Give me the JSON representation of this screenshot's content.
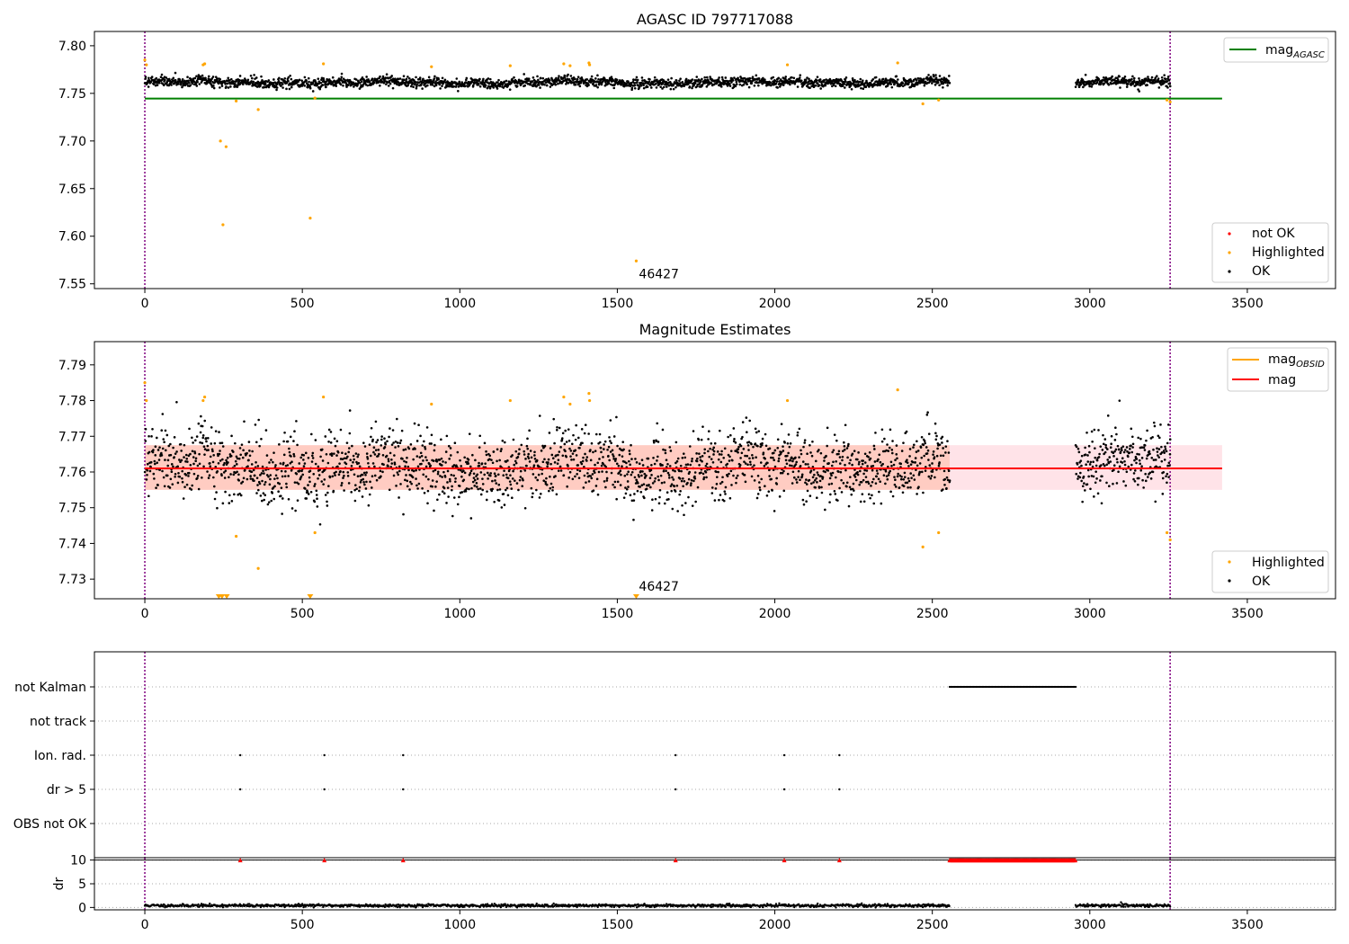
{
  "chart_data": [
    {
      "type": "scatter",
      "title": "AGASC ID 797717088",
      "xlim": [
        -160,
        3780
      ],
      "ylim": [
        7.545,
        7.815
      ],
      "xticks": [
        0,
        500,
        1000,
        1500,
        2000,
        2500,
        3000,
        3500
      ],
      "yticks": [
        7.55,
        7.6,
        7.65,
        7.7,
        7.75,
        7.8
      ],
      "grid": false,
      "vlines": [
        0,
        3255
      ],
      "series": [
        {
          "name": "not OK",
          "color": "#ff0000",
          "points": []
        },
        {
          "name": "Highlighted",
          "color": "#ffa500",
          "points": [
            [
              0,
              7.785
            ],
            [
              5,
              7.78
            ],
            [
              185,
              7.78
            ],
            [
              190,
              7.781
            ],
            [
              240,
              7.7
            ],
            [
              248,
              7.612
            ],
            [
              258,
              7.694
            ],
            [
              290,
              7.742
            ],
            [
              360,
              7.733
            ],
            [
              525,
              7.619
            ],
            [
              540,
              7.745
            ],
            [
              567,
              7.781
            ],
            [
              910,
              7.778
            ],
            [
              1160,
              7.779
            ],
            [
              1330,
              7.781
            ],
            [
              1350,
              7.779
            ],
            [
              1410,
              7.782
            ],
            [
              1412,
              7.78
            ],
            [
              1560,
              7.574
            ],
            [
              2040,
              7.78
            ],
            [
              2390,
              7.782
            ],
            [
              2470,
              7.739
            ],
            [
              2520,
              7.743
            ],
            [
              3245,
              7.743
            ],
            [
              3255,
              7.741
            ]
          ]
        },
        {
          "name": "OK",
          "color": "#000000",
          "generated": {
            "segments": [
              [
                0,
                2555
              ],
              [
                2955,
                3255
              ]
            ],
            "center": 7.7615,
            "spread": 0.0085,
            "seed": 7
          }
        }
      ],
      "lines": [
        {
          "name": "mag_AGASC",
          "color": "#008000",
          "y": 7.7445,
          "x": [
            0,
            3420
          ]
        }
      ],
      "annotations": [
        {
          "text": "46427",
          "x": 1560,
          "y": 7.574
        }
      ],
      "legends": {
        "top-right": [
          "mag_AGASC"
        ],
        "bottom-right": [
          "not OK",
          "Highlighted",
          "OK"
        ]
      }
    },
    {
      "type": "scatter",
      "title": "Magnitude Estimates",
      "xlim": [
        -160,
        3780
      ],
      "ylim": [
        7.7245,
        7.7965
      ],
      "xticks": [
        0,
        500,
        1000,
        1500,
        2000,
        2500,
        3000,
        3500
      ],
      "yticks": [
        7.73,
        7.74,
        7.75,
        7.76,
        7.77,
        7.78,
        7.79
      ],
      "grid": false,
      "vlines": [
        0,
        3255
      ],
      "band": {
        "y_low": 7.755,
        "y_high": 7.7675,
        "x": [
          0,
          3420
        ]
      },
      "series": [
        {
          "name": "Highlighted",
          "color": "#ffa500",
          "points": [
            [
              0,
              7.785
            ],
            [
              5,
              7.78
            ],
            [
              185,
              7.78
            ],
            [
              190,
              7.781
            ],
            [
              290,
              7.742
            ],
            [
              360,
              7.733
            ],
            [
              540,
              7.743
            ],
            [
              567,
              7.781
            ],
            [
              910,
              7.779
            ],
            [
              1160,
              7.78
            ],
            [
              1330,
              7.781
            ],
            [
              1350,
              7.779
            ],
            [
              1410,
              7.782
            ],
            [
              1412,
              7.78
            ],
            [
              2040,
              7.78
            ],
            [
              2390,
              7.783
            ],
            [
              2470,
              7.739
            ],
            [
              2520,
              7.743
            ],
            [
              3245,
              7.743
            ],
            [
              3255,
              7.741
            ]
          ]
        },
        {
          "name": "OK",
          "color": "#000000",
          "generated": {
            "segments": [
              [
                0,
                2555
              ],
              [
                2955,
                3255
              ]
            ],
            "center": 7.7615,
            "spread": 0.0085,
            "seed": 7
          }
        }
      ],
      "clipped_markers": [
        [
          235,
          7.7245
        ],
        [
          245,
          7.7245
        ],
        [
          260,
          7.7245
        ],
        [
          525,
          7.7245
        ],
        [
          1560,
          7.7245
        ]
      ],
      "lines": [
        {
          "name": "mag_OBSID",
          "color": "#ffa500"
        },
        {
          "name": "mag",
          "color": "#ff0000",
          "y": 7.761,
          "x": [
            0,
            3420
          ]
        }
      ],
      "annotations": [
        {
          "text": "46427",
          "x": 1560,
          "y": 7.7245
        }
      ],
      "legends": {
        "top-right": [
          "mag_OBSID",
          "mag"
        ],
        "bottom-right": [
          "Highlighted",
          "OK"
        ]
      }
    },
    {
      "type": "scatter",
      "title": "",
      "xlim": [
        -160,
        3780
      ],
      "categories": [
        "not Kalman",
        "not track",
        "Ion. rad.",
        "dr > 5",
        "OBS not OK"
      ],
      "grid": true,
      "vlines": [
        0,
        3255
      ],
      "flags": {
        "not Kalman": {
          "range": [
            2555,
            2955
          ]
        },
        "not track": {
          "points": []
        },
        "Ion. rad.": {
          "points": [
            303,
            570,
            820,
            1685,
            2030,
            2205
          ]
        },
        "dr > 5": {
          "points": [
            303,
            570,
            820,
            1685,
            2030,
            2205
          ]
        },
        "OBS not OK": {
          "points": []
        }
      }
    },
    {
      "type": "scatter",
      "title": "",
      "ylabel": "dr",
      "xlim": [
        -160,
        3780
      ],
      "ylim": [
        -0.5,
        10.5
      ],
      "xticks": [
        0,
        500,
        1000,
        1500,
        2000,
        2500,
        3000,
        3500
      ],
      "yticks": [
        0,
        5,
        10
      ],
      "grid": true,
      "vlines": [
        0,
        3255
      ],
      "dr_series": {
        "segments": [
          [
            0,
            2555
          ],
          [
            2955,
            3255
          ]
        ],
        "center": 0.4,
        "spread": 0.25
      },
      "capped_points": {
        "color": "#ff0000",
        "y": 10,
        "x": [
          303,
          570,
          820,
          1685,
          2030,
          2205
        ],
        "range": [
          2555,
          2955
        ]
      }
    }
  ],
  "legend_labels": {
    "mag_agasc": "mag",
    "mag_agasc_sub": "AGASC",
    "mag_obsid": "mag",
    "mag_obsid_sub": "OBSID",
    "mag": "mag",
    "not_ok": "not OK",
    "highlighted": "Highlighted",
    "ok": "OK"
  },
  "panel_titles": {
    "top": "AGASC ID 797717088",
    "middle": "Magnitude Estimates"
  },
  "annotation_text": "46427",
  "colors": {
    "ok": "#000000",
    "highlighted": "#ffa500",
    "not_ok": "#ff0000",
    "agasc_line": "#008000",
    "mag_line": "#ff0000",
    "band_fill": "#ffc0cb",
    "vline": "#800080"
  }
}
